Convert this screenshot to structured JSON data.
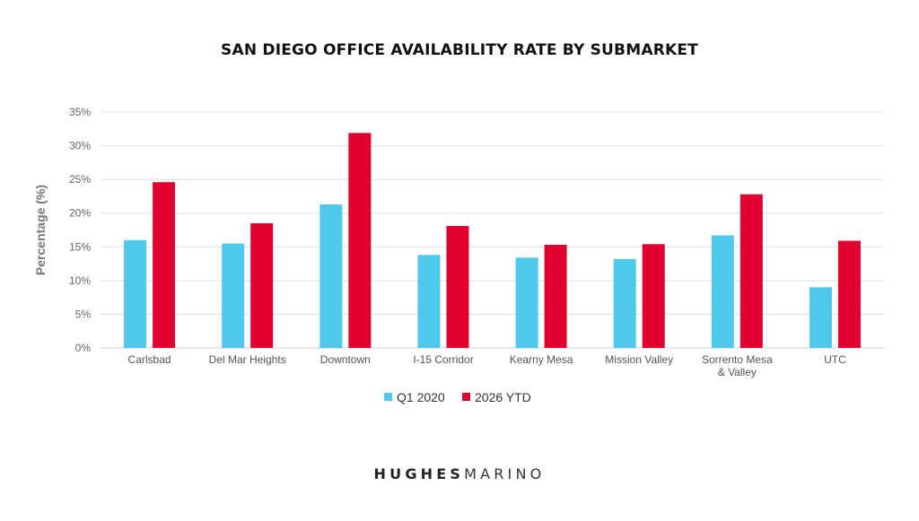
{
  "chart_data": {
    "type": "bar",
    "title": "SAN DIEGO OFFICE AVAILABILITY RATE BY SUBMARKET",
    "xlabel": "",
    "ylabel": "Percentage (%)",
    "categories": [
      "Carlsbad",
      "Del Mar Heights",
      "Downtown",
      "I-15 Corridor",
      "Kearny Mesa",
      "Mission Valley",
      "Sorrento Mesa & Valley",
      "UTC"
    ],
    "category_lines": [
      [
        "Carlsbad"
      ],
      [
        "Del Mar Heights"
      ],
      [
        "Downtown"
      ],
      [
        "I-15 Corridor"
      ],
      [
        "Kearny Mesa"
      ],
      [
        "Mission Valley"
      ],
      [
        "Sorrento Mesa",
        "& Valley"
      ],
      [
        "UTC"
      ]
    ],
    "series": [
      {
        "name": "Q1 2020",
        "color": "#4FC8EA",
        "values": [
          16.0,
          15.5,
          21.3,
          13.8,
          13.4,
          13.2,
          16.7,
          9.0
        ]
      },
      {
        "name": "2026 YTD",
        "color": "#E0002F",
        "values": [
          24.6,
          18.5,
          31.9,
          18.1,
          15.3,
          15.4,
          22.8,
          15.9
        ]
      }
    ],
    "ylim": [
      0,
      35
    ],
    "yticks": [
      0,
      5,
      10,
      15,
      20,
      25,
      30,
      35
    ],
    "ytick_labels": [
      "0%",
      "5%",
      "10%",
      "15%",
      "20%",
      "25%",
      "30%",
      "35%"
    ],
    "grid": true,
    "legend_position": "bottom-center"
  },
  "brand": {
    "part1": "HUGHES",
    "part2": "MARINO"
  }
}
